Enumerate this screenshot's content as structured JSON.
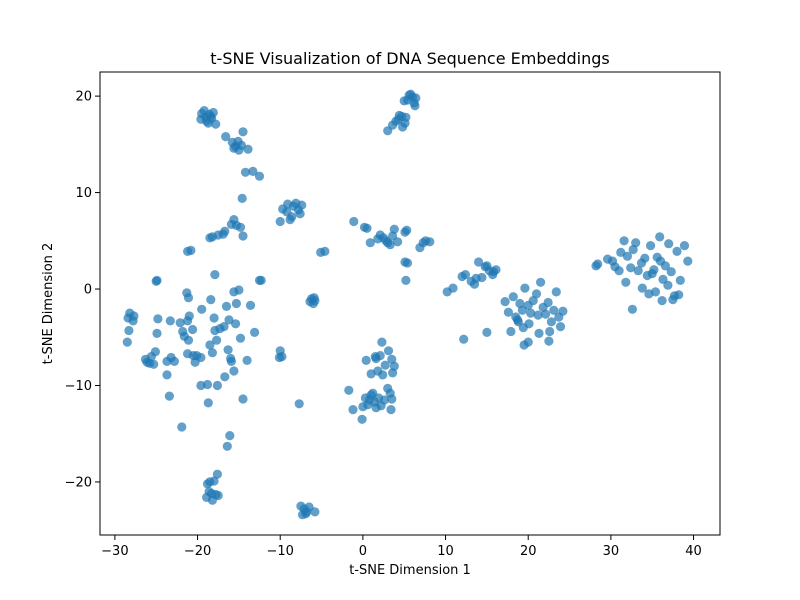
{
  "chart_data": {
    "type": "scatter",
    "title": "t-SNE Visualization of DNA Sequence Embeddings",
    "xlabel": "t-SNE Dimension 1",
    "ylabel": "t-SNE Dimension 2",
    "xlim": [
      -31.8,
      43.2
    ],
    "ylim": [
      -25.5,
      22.5
    ],
    "xticks": [
      -30,
      -20,
      -10,
      0,
      10,
      20,
      30,
      40
    ],
    "yticks": [
      -20,
      -10,
      0,
      10,
      20
    ],
    "grid": false,
    "marker_color": "#1f77b4",
    "marker_alpha": 0.7,
    "series": [
      {
        "points": [
          [
            -19.5,
            18.2
          ],
          [
            -19.0,
            17.8
          ],
          [
            -18.6,
            18.1
          ],
          [
            -18.3,
            17.7
          ],
          [
            -18.9,
            17.4
          ],
          [
            -19.6,
            17.6
          ],
          [
            -18.1,
            18.3
          ],
          [
            -19.2,
            18.5
          ],
          [
            -18.7,
            17.2
          ],
          [
            -17.8,
            17.1
          ],
          [
            -18.4,
            17.9
          ],
          [
            -15.8,
            15.2
          ],
          [
            -15.4,
            14.8
          ],
          [
            -15.1,
            15.3
          ],
          [
            -15.6,
            14.6
          ],
          [
            -14.7,
            14.9
          ],
          [
            -14.5,
            16.3
          ],
          [
            -16.6,
            15.8
          ],
          [
            -13.9,
            14.5
          ],
          [
            -15.0,
            14.4
          ],
          [
            -14.2,
            12.1
          ],
          [
            -13.3,
            12.2
          ],
          [
            -12.5,
            11.7
          ],
          [
            -14.6,
            9.4
          ],
          [
            5.6,
            20.1
          ],
          [
            6.0,
            19.9
          ],
          [
            5.4,
            19.6
          ],
          [
            6.2,
            19.3
          ],
          [
            5.8,
            20.2
          ],
          [
            6.4,
            19.8
          ],
          [
            5.0,
            19.5
          ],
          [
            6.3,
            19.0
          ],
          [
            4.7,
            17.9
          ],
          [
            4.3,
            17.6
          ],
          [
            5.1,
            17.2
          ],
          [
            4.0,
            17.4
          ],
          [
            4.8,
            16.8
          ],
          [
            4.4,
            18.0
          ],
          [
            3.6,
            17.0
          ],
          [
            3.0,
            16.4
          ],
          [
            5.2,
            17.8
          ],
          [
            -9.7,
            8.3
          ],
          [
            -9.1,
            8.8
          ],
          [
            -8.4,
            8.6
          ],
          [
            -7.8,
            8.2
          ],
          [
            -7.4,
            8.7
          ],
          [
            -7.6,
            7.8
          ],
          [
            -8.6,
            7.5
          ],
          [
            -8.8,
            7.2
          ],
          [
            -9.2,
            8.0
          ],
          [
            -10.0,
            7.0
          ],
          [
            -8.1,
            8.9
          ],
          [
            -15.6,
            7.2
          ],
          [
            -15.3,
            6.6
          ],
          [
            -14.8,
            6.4
          ],
          [
            -14.5,
            5.5
          ],
          [
            -15.9,
            6.7
          ],
          [
            -16.7,
            6.0
          ],
          [
            -16.9,
            5.7
          ],
          [
            -17.5,
            5.6
          ],
          [
            -18.5,
            5.3
          ],
          [
            -18.2,
            5.4
          ],
          [
            -20.8,
            4.0
          ],
          [
            -21.2,
            3.9
          ],
          [
            -5.1,
            3.8
          ],
          [
            -4.6,
            3.9
          ],
          [
            -1.1,
            7.0
          ],
          [
            0.5,
            6.3
          ],
          [
            0.2,
            6.4
          ],
          [
            3.8,
            6.2
          ],
          [
            5.3,
            6.1
          ],
          [
            5.1,
            5.9
          ],
          [
            2.1,
            5.6
          ],
          [
            2.5,
            5.3
          ],
          [
            2.8,
            5.0
          ],
          [
            3.0,
            4.8
          ],
          [
            1.8,
            5.2
          ],
          [
            3.6,
            5.5
          ],
          [
            4.2,
            4.9
          ],
          [
            3.3,
            4.6
          ],
          [
            0.9,
            4.8
          ],
          [
            5.1,
            2.8
          ],
          [
            5.4,
            2.7
          ],
          [
            5.2,
            0.9
          ],
          [
            6.9,
            4.3
          ],
          [
            7.3,
            4.8
          ],
          [
            7.6,
            5.0
          ],
          [
            8.1,
            4.9
          ],
          [
            10.2,
            -0.3
          ],
          [
            10.9,
            0.1
          ],
          [
            12.0,
            1.3
          ],
          [
            12.4,
            1.5
          ],
          [
            13.1,
            0.8
          ],
          [
            13.5,
            0.5
          ],
          [
            13.7,
            1.1
          ],
          [
            14.0,
            2.8
          ],
          [
            14.4,
            1.2
          ],
          [
            15.0,
            2.4
          ],
          [
            15.3,
            1.9
          ],
          [
            14.8,
            2.3
          ],
          [
            15.7,
            1.5
          ],
          [
            16.1,
            2.0
          ],
          [
            15.8,
            1.8
          ],
          [
            12.2,
            -5.2
          ],
          [
            15.0,
            -4.5
          ],
          [
            17.2,
            -1.3
          ],
          [
            17.6,
            -2.4
          ],
          [
            18.2,
            -0.8
          ],
          [
            18.5,
            -2.9
          ],
          [
            19.0,
            -1.5
          ],
          [
            19.3,
            -2.2
          ],
          [
            19.6,
            0.1
          ],
          [
            20.0,
            -1.7
          ],
          [
            20.3,
            -2.5
          ],
          [
            20.6,
            -1.2
          ],
          [
            21.0,
            -0.5
          ],
          [
            21.2,
            -2.7
          ],
          [
            21.5,
            0.7
          ],
          [
            21.8,
            -1.9
          ],
          [
            22.1,
            -2.6
          ],
          [
            22.4,
            -1.4
          ],
          [
            22.8,
            -3.4
          ],
          [
            23.1,
            -2.2
          ],
          [
            23.4,
            -0.3
          ],
          [
            23.7,
            -2.9
          ],
          [
            24.2,
            -2.3
          ],
          [
            18.8,
            -3.4
          ],
          [
            19.4,
            -4.0
          ],
          [
            20.1,
            -3.6
          ],
          [
            21.3,
            -4.6
          ],
          [
            22.6,
            -4.4
          ],
          [
            23.9,
            -3.9
          ],
          [
            20.0,
            -5.5
          ],
          [
            19.5,
            -5.8
          ],
          [
            22.5,
            -5.4
          ],
          [
            17.9,
            -4.4
          ],
          [
            18.7,
            -3.2
          ],
          [
            28.2,
            2.4
          ],
          [
            28.4,
            2.6
          ],
          [
            29.6,
            3.1
          ],
          [
            30.2,
            2.9
          ],
          [
            30.5,
            2.3
          ],
          [
            31.2,
            3.8
          ],
          [
            31.6,
            5.0
          ],
          [
            32.0,
            3.4
          ],
          [
            32.4,
            2.2
          ],
          [
            32.7,
            4.1
          ],
          [
            33.0,
            4.8
          ],
          [
            33.3,
            1.9
          ],
          [
            33.7,
            2.7
          ],
          [
            34.1,
            3.2
          ],
          [
            34.4,
            1.4
          ],
          [
            34.8,
            4.5
          ],
          [
            35.2,
            2.0
          ],
          [
            35.6,
            3.3
          ],
          [
            35.9,
            5.4
          ],
          [
            36.3,
            1.0
          ],
          [
            36.6,
            2.4
          ],
          [
            37.0,
            4.7
          ],
          [
            37.3,
            1.8
          ],
          [
            37.7,
            -0.7
          ],
          [
            38.0,
            3.9
          ],
          [
            38.4,
            0.9
          ],
          [
            38.9,
            4.5
          ],
          [
            39.3,
            2.9
          ],
          [
            31.0,
            1.9
          ],
          [
            31.8,
            0.7
          ],
          [
            32.6,
            -2.1
          ],
          [
            33.8,
            0.1
          ],
          [
            34.6,
            -0.5
          ],
          [
            35.4,
            -0.3
          ],
          [
            36.2,
            -1.2
          ],
          [
            36.9,
            0.4
          ],
          [
            37.5,
            -1.1
          ],
          [
            38.2,
            -0.6
          ],
          [
            35.0,
            1.6
          ],
          [
            36.0,
            2.9
          ],
          [
            -28.2,
            -2.5
          ],
          [
            -28.4,
            -3.0
          ],
          [
            -27.8,
            -3.3
          ],
          [
            -27.7,
            -2.8
          ],
          [
            -28.3,
            -4.3
          ],
          [
            -28.5,
            -5.5
          ],
          [
            -26.3,
            -7.3
          ],
          [
            -25.6,
            -7.0
          ],
          [
            -25.8,
            -7.7
          ],
          [
            -25.1,
            -6.5
          ],
          [
            -24.9,
            -4.6
          ],
          [
            -24.8,
            -3.1
          ],
          [
            -23.7,
            -8.9
          ],
          [
            -23.7,
            -7.5
          ],
          [
            -23.2,
            -7.1
          ],
          [
            -23.3,
            -3.3
          ],
          [
            -23.4,
            -11.1
          ],
          [
            -22.1,
            -3.5
          ],
          [
            -21.9,
            -14.3
          ],
          [
            -21.8,
            -4.4
          ],
          [
            -21.6,
            -4.9
          ],
          [
            -21.2,
            -6.7
          ],
          [
            -21.1,
            -5.3
          ],
          [
            -21.2,
            -3.3
          ],
          [
            -21.3,
            -0.4
          ],
          [
            -21.1,
            -0.9
          ],
          [
            -21.0,
            -2.8
          ],
          [
            -20.5,
            -6.9
          ],
          [
            -20.3,
            -7.6
          ],
          [
            -20.6,
            -4.2
          ],
          [
            -19.6,
            -10.0
          ],
          [
            -19.5,
            -2.1
          ],
          [
            -18.8,
            -9.9
          ],
          [
            -18.7,
            -11.8
          ],
          [
            -18.4,
            -1.1
          ],
          [
            -18.5,
            -5.8
          ],
          [
            -18.2,
            -6.6
          ],
          [
            -18.0,
            -3.0
          ],
          [
            -17.7,
            -5.3
          ],
          [
            -17.6,
            -10.0
          ],
          [
            -17.9,
            -4.3
          ],
          [
            -17.3,
            -4.1
          ],
          [
            -16.8,
            -3.9
          ],
          [
            -16.7,
            -9.1
          ],
          [
            -16.5,
            -1.8
          ],
          [
            -16.2,
            -3.2
          ],
          [
            -16.3,
            -6.3
          ],
          [
            -16.0,
            -7.2
          ],
          [
            -15.9,
            -7.5
          ],
          [
            -15.6,
            -8.5
          ],
          [
            -15.6,
            -0.3
          ],
          [
            -15.4,
            -3.6
          ],
          [
            -15.3,
            -1.5
          ],
          [
            -15.0,
            -0.1
          ],
          [
            -14.8,
            -5.1
          ],
          [
            -14.5,
            -11.4
          ],
          [
            -14.0,
            -7.4
          ],
          [
            -13.6,
            -1.7
          ],
          [
            -13.1,
            -4.5
          ],
          [
            -12.5,
            0.9
          ],
          [
            -12.3,
            0.9
          ],
          [
            -25.0,
            0.8
          ],
          [
            -24.9,
            0.9
          ],
          [
            -17.9,
            1.5
          ],
          [
            -19.6,
            -7.1
          ],
          [
            -20.1,
            -6.9
          ],
          [
            -22.8,
            -7.5
          ],
          [
            -25.3,
            -7.8
          ],
          [
            -26.1,
            -7.6
          ],
          [
            -6.2,
            -1.0
          ],
          [
            -6.0,
            -1.5
          ],
          [
            -5.8,
            -1.2
          ],
          [
            -6.4,
            -1.3
          ],
          [
            -5.9,
            -0.9
          ],
          [
            -10.0,
            -6.4
          ],
          [
            -10.1,
            -7.1
          ],
          [
            -9.8,
            -7.0
          ],
          [
            -7.7,
            -11.9
          ],
          [
            -18.8,
            -20.2
          ],
          [
            -18.5,
            -20.0
          ],
          [
            -18.0,
            -19.9
          ],
          [
            -18.6,
            -21.0
          ],
          [
            -18.3,
            -21.2
          ],
          [
            -17.8,
            -21.3
          ],
          [
            -17.5,
            -21.4
          ],
          [
            -18.9,
            -21.6
          ],
          [
            -18.2,
            -21.9
          ],
          [
            -17.6,
            -19.2
          ],
          [
            -16.4,
            -16.3
          ],
          [
            -16.1,
            -15.2
          ],
          [
            -7.5,
            -22.5
          ],
          [
            -7.1,
            -22.8
          ],
          [
            -6.8,
            -23.1
          ],
          [
            -6.5,
            -22.6
          ],
          [
            -7.3,
            -23.4
          ],
          [
            -6.9,
            -23.3
          ],
          [
            -5.8,
            -23.1
          ],
          [
            -1.7,
            -10.5
          ],
          [
            -1.2,
            -12.5
          ],
          [
            -0.1,
            -13.5
          ],
          [
            0.0,
            -12.2
          ],
          [
            0.3,
            -11.3
          ],
          [
            0.6,
            -12.0
          ],
          [
            0.8,
            -11.5
          ],
          [
            1.0,
            -11.0
          ],
          [
            1.2,
            -10.8
          ],
          [
            1.4,
            -11.7
          ],
          [
            1.6,
            -12.3
          ],
          [
            1.9,
            -11.3
          ],
          [
            2.2,
            -12.1
          ],
          [
            2.6,
            -11.5
          ],
          [
            3.0,
            -10.3
          ],
          [
            3.3,
            -10.8
          ],
          [
            3.5,
            -11.4
          ],
          [
            3.4,
            -12.5
          ],
          [
            0.4,
            -7.4
          ],
          [
            1.0,
            -8.8
          ],
          [
            1.5,
            -7.0
          ],
          [
            1.8,
            -8.5
          ],
          [
            2.1,
            -6.9
          ],
          [
            2.3,
            -5.5
          ],
          [
            2.7,
            -7.9
          ],
          [
            3.1,
            -6.4
          ],
          [
            3.5,
            -7.3
          ],
          [
            3.8,
            -8.0
          ],
          [
            3.6,
            -8.7
          ],
          [
            2.4,
            -8.9
          ],
          [
            1.6,
            -7.2
          ]
        ]
      }
    ]
  }
}
